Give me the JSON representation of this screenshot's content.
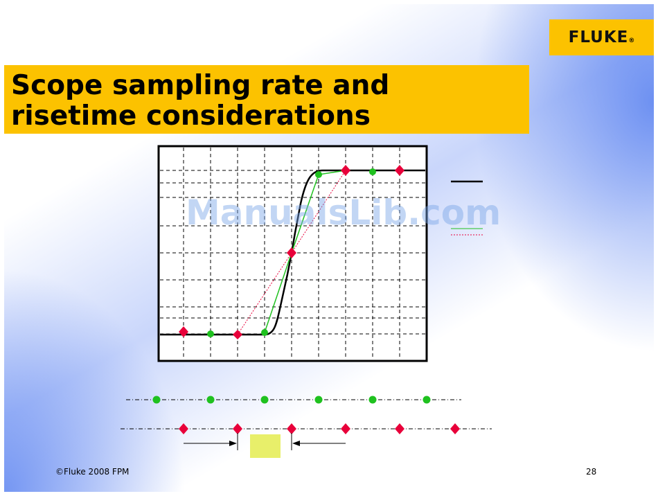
{
  "brand": {
    "logo": "FLUKE",
    "logo_mark": "®"
  },
  "slide": {
    "title": "Scope sampling rate and\nrisetime considerations",
    "page_number": "28",
    "copyright": "©Fluke 2008 FPM"
  },
  "watermark": "ManualsLib.com",
  "colors": {
    "accent_yellow": "#fcc200",
    "signal": "#000000",
    "fast_samples": "#1fc11f",
    "slow_samples": "#e8003a",
    "interval_box": "#e8ef6a"
  },
  "legend": {
    "items": [
      {
        "style": "solid",
        "color": "#000000"
      },
      {
        "style": "solid",
        "color": "#1fc11f"
      },
      {
        "style": "dotted",
        "color": "#e8003a"
      }
    ]
  },
  "icons": {
    "fast_sample": "circle-marker",
    "slow_sample": "diamond-marker",
    "interval": "double-arrow-gap"
  }
}
